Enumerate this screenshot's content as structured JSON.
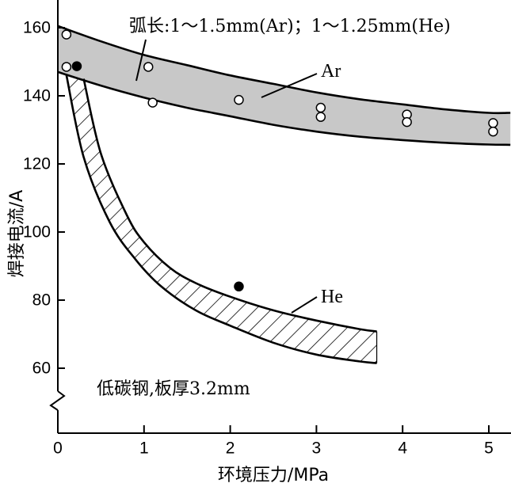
{
  "chart_data": {
    "type": "line",
    "xlabel": "环境压力/MPa",
    "ylabel": "焊接电流/A",
    "xlim": [
      0,
      5.25
    ],
    "ylim": [
      54,
      167
    ],
    "xticks": [
      0,
      1,
      2,
      3,
      4,
      5
    ],
    "yticks": [
      60,
      80,
      100,
      120,
      140,
      160
    ],
    "y_axis_break": true,
    "grid": false,
    "annotation_top": "弧长:1～1.5mm(Ar)；1～1.25mm(He)",
    "annotation_bottom": "低碳钢,板厚3.2mm",
    "series": [
      {
        "name": "Ar",
        "fill": "gray",
        "upper": {
          "x": [
            0,
            0.5,
            1,
            1.5,
            2,
            2.5,
            3,
            3.5,
            4,
            4.5,
            5,
            5.25
          ],
          "y": [
            160.5,
            156,
            152,
            149,
            146,
            143.5,
            141,
            139,
            137.5,
            136,
            135,
            135
          ]
        },
        "lower": {
          "x": [
            0,
            0.5,
            1,
            1.5,
            2,
            2.5,
            3,
            3.5,
            4,
            4.5,
            5,
            5.25
          ],
          "y": [
            147,
            143,
            139.5,
            136.5,
            134,
            131.5,
            129.5,
            128,
            127,
            126.2,
            125.7,
            125.6
          ]
        },
        "points_open": [
          [
            0.1,
            158
          ],
          [
            0.1,
            148.5
          ],
          [
            1.05,
            148.5
          ],
          [
            1.1,
            138
          ],
          [
            2.1,
            138.8
          ],
          [
            3.05,
            136.5
          ],
          [
            3.05,
            133.8
          ],
          [
            4.05,
            134.5
          ],
          [
            4.05,
            132.3
          ],
          [
            5.05,
            132
          ],
          [
            5.05,
            129.5
          ]
        ],
        "points_filled": [
          [
            0.22,
            148.7
          ]
        ]
      },
      {
        "name": "He",
        "fill": "hatched",
        "upper": {
          "x": [
            0.3,
            0.5,
            0.8,
            1.0,
            1.3,
            1.6,
            2.0,
            2.5,
            3.0,
            3.5,
            3.7
          ],
          "y": [
            145,
            123,
            105,
            97,
            89.5,
            85,
            81,
            77,
            74,
            71.5,
            70.8
          ]
        },
        "lower": {
          "x": [
            0.1,
            0.3,
            0.6,
            0.9,
            1.2,
            1.6,
            2.0,
            2.5,
            3.0,
            3.5,
            3.7
          ],
          "y": [
            146,
            122,
            103,
            92,
            84,
            77,
            72.5,
            67.5,
            64,
            62,
            61.5
          ]
        },
        "points_open": [],
        "points_filled": [
          [
            2.1,
            84
          ]
        ]
      }
    ]
  }
}
